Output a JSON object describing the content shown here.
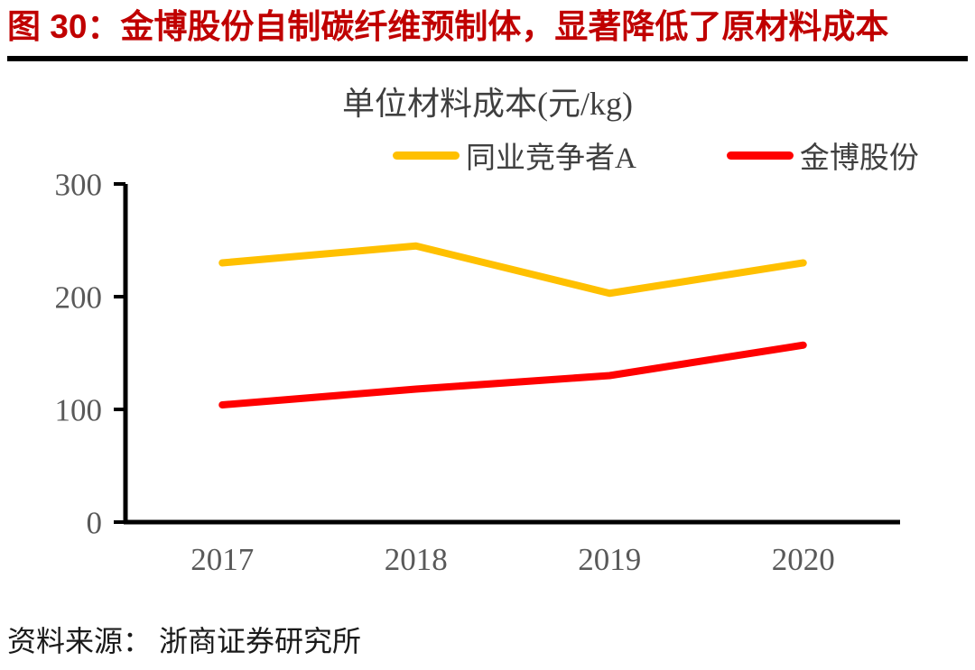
{
  "figure": {
    "caption": "图 30：金博股份自制碳纤维预制体，显著降低了原材料成本",
    "source": "资料来源： 浙商证券研究所"
  },
  "chart_data": {
    "type": "line",
    "title": "单位材料成本(元/kg)",
    "categories": [
      "2017",
      "2018",
      "2019",
      "2020"
    ],
    "series": [
      {
        "name": "同业竞争者A",
        "color": "#FFC000",
        "values": [
          230,
          245,
          203,
          230
        ]
      },
      {
        "name": "金博股份",
        "color": "#FF0000",
        "values": [
          104,
          118,
          130,
          157
        ]
      }
    ],
    "ylim": [
      0,
      300
    ],
    "y_ticks": [
      0,
      100,
      200,
      300
    ],
    "grid": "off",
    "legend_position": "top"
  },
  "style": {
    "caption_color": "#C00000",
    "axis_color": "#000000",
    "tick_label_color": "#595959",
    "title_color": "#3F3F3F"
  }
}
